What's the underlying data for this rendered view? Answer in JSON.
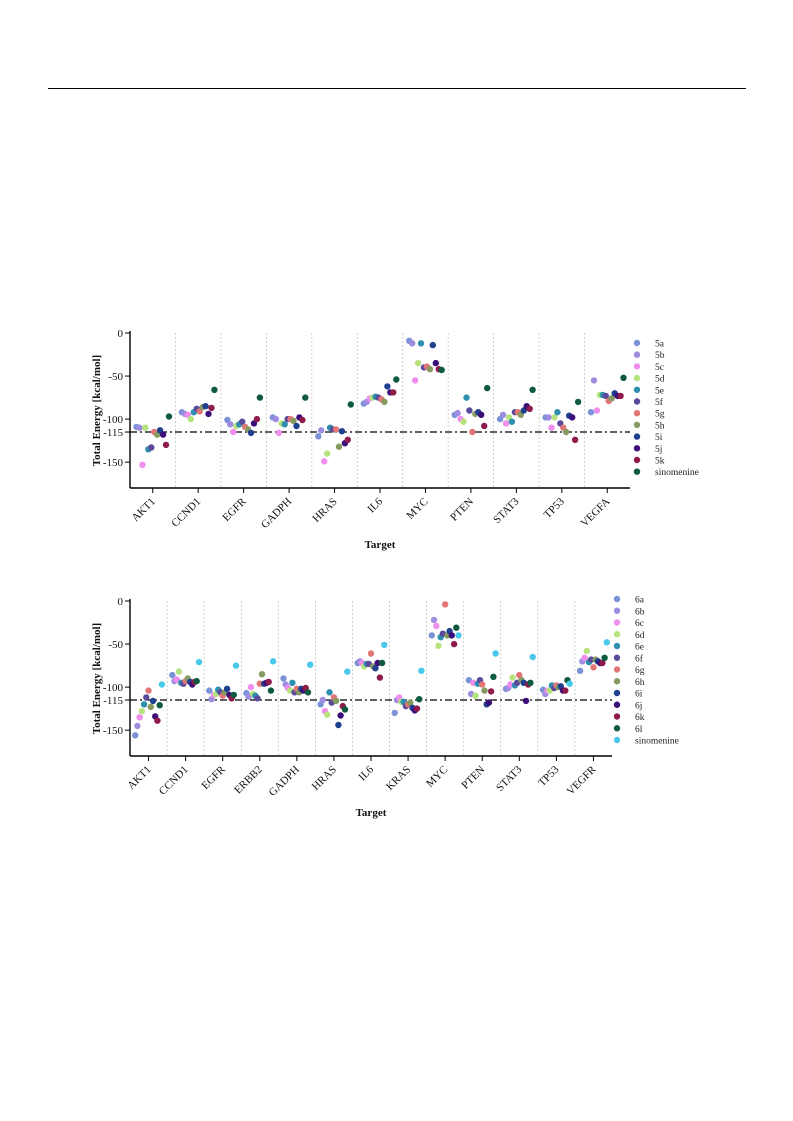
{
  "chart_data": [
    {
      "type": "scatter",
      "xlabel": "Target",
      "ylabel": "Total Energy [kcal/mol]",
      "ylim": [
        -180,
        0
      ],
      "yticks": [
        0,
        -50,
        -100,
        -115,
        -150
      ],
      "reference_line": -115,
      "categories": [
        "AKT1",
        "CCND1",
        "EGFR",
        "GADPH",
        "HRAS",
        "IL6",
        "MYC",
        "PTEN",
        "STAT3",
        "TP53",
        "VEGFA"
      ],
      "series": [
        {
          "name": "5a",
          "color": "#7b93d6",
          "values": [
            -109,
            -92,
            -101,
            -98,
            -120,
            -82,
            -9,
            -95,
            -100,
            -98,
            -92
          ]
        },
        {
          "name": "5b",
          "color": "#a08ce0",
          "values": [
            -110,
            -94,
            -106,
            -100,
            -113,
            -80,
            -12,
            -93,
            -95,
            -98,
            -55
          ]
        },
        {
          "name": "5c",
          "color": "#f08ef0",
          "values": [
            -153,
            -95,
            -115,
            -116,
            -149,
            -76,
            -55,
            -100,
            -105,
            -110,
            -90
          ]
        },
        {
          "name": "5d",
          "color": "#b7e37e",
          "values": [
            -110,
            -100,
            -108,
            -105,
            -140,
            -75,
            -35,
            -103,
            -98,
            -98,
            -72
          ]
        },
        {
          "name": "5e",
          "color": "#2f8faf",
          "values": [
            -135,
            -92,
            -106,
            -106,
            -110,
            -74,
            -12,
            -75,
            -103,
            -92,
            -72
          ]
        },
        {
          "name": "5f",
          "color": "#5b4a9b",
          "values": [
            -133,
            -88,
            -103,
            -100,
            -112,
            -75,
            -40,
            -90,
            -92,
            -105,
            -73
          ]
        },
        {
          "name": "5g",
          "color": "#e27575",
          "values": [
            -115,
            -91,
            -109,
            -100,
            -112,
            -77,
            -39,
            -115,
            -92,
            -110,
            -79
          ]
        },
        {
          "name": "5h",
          "color": "#869a62",
          "values": [
            -118,
            -86,
            -112,
            -102,
            -132,
            -80,
            -42,
            -94,
            -95,
            -115,
            -76
          ]
        },
        {
          "name": "5i",
          "color": "#1f3f8f",
          "values": [
            -113,
            -85,
            -116,
            -108,
            -114,
            -62,
            -14,
            -92,
            -90,
            -96,
            -70
          ]
        },
        {
          "name": "5j",
          "color": "#3b0e7a",
          "values": [
            -118,
            -94,
            -105,
            -98,
            -128,
            -69,
            -35,
            -95,
            -85,
            -98,
            -73
          ]
        },
        {
          "name": "5k",
          "color": "#8e1b4b",
          "values": [
            -130,
            -87,
            -100,
            -101,
            -124,
            -69,
            -42,
            -108,
            -88,
            -124,
            -73
          ]
        },
        {
          "name": "sinomenine",
          "color": "#0e5a3d",
          "values": [
            -97,
            -66,
            -75,
            -75,
            -83,
            -54,
            -43,
            -64,
            -66,
            -80,
            -52
          ]
        }
      ]
    },
    {
      "type": "scatter",
      "xlabel": "Target",
      "ylabel": "Total Energy [kcal/mol]",
      "ylim": [
        -180,
        0
      ],
      "yticks": [
        0,
        -50,
        -100,
        -115,
        -150
      ],
      "reference_line": -115,
      "categories": [
        "AKT1",
        "CCND1",
        "EGFR",
        "ERBB2",
        "GADPH",
        "HRAS",
        "IL6",
        "KRAS",
        "MYC",
        "PTEN",
        "STAT3",
        "TP53",
        "VEGFR"
      ],
      "series": [
        {
          "name": "6a",
          "color": "#7b93d6",
          "values": [
            -156,
            -86,
            -104,
            -107,
            -90,
            -120,
            -72,
            -130,
            -40,
            -92,
            -102,
            -103,
            -81
          ]
        },
        {
          "name": "6b",
          "color": "#a08ce0",
          "values": [
            -145,
            -93,
            -114,
            -111,
            -97,
            -115,
            -70,
            -115,
            -22,
            -108,
            -101,
            -108,
            -70
          ]
        },
        {
          "name": "6c",
          "color": "#f08ef0",
          "values": [
            -135,
            -91,
            -109,
            -100,
            -101,
            -128,
            -72,
            -112,
            -29,
            -95,
            -97,
            -104,
            -66
          ]
        },
        {
          "name": "6d",
          "color": "#b7e37e",
          "values": [
            -128,
            -82,
            -108,
            -108,
            -104,
            -132,
            -76,
            -117,
            -52,
            -110,
            -89,
            -104,
            -58
          ]
        },
        {
          "name": "6e",
          "color": "#2f8faf",
          "values": [
            -120,
            -95,
            -103,
            -110,
            -95,
            -106,
            -73,
            -117,
            -42,
            -96,
            -98,
            -98,
            -71
          ]
        },
        {
          "name": "6f",
          "color": "#5b4a9b",
          "values": [
            -112,
            -96,
            -106,
            -113,
            -106,
            -118,
            -73,
            -122,
            -38,
            -92,
            -95,
            -101,
            -68
          ]
        },
        {
          "name": "6g",
          "color": "#e27575",
          "values": [
            -104,
            -93,
            -110,
            -96,
            -102,
            -112,
            -61,
            -120,
            -4,
            -97,
            -86,
            -98,
            -77
          ]
        },
        {
          "name": "6h",
          "color": "#869a62",
          "values": [
            -123,
            -90,
            -106,
            -85,
            -106,
            -116,
            -76,
            -118,
            -40,
            -104,
            -92,
            -100,
            -68
          ]
        },
        {
          "name": "6i",
          "color": "#1f3f8f",
          "values": [
            -116,
            -94,
            -102,
            -96,
            -102,
            -144,
            -78,
            -124,
            -35,
            -120,
            -95,
            -99,
            -70
          ]
        },
        {
          "name": "6j",
          "color": "#3b0e7a",
          "values": [
            -134,
            -97,
            -109,
            -95,
            -104,
            -133,
            -72,
            -127,
            -40,
            -118,
            -116,
            -104,
            -72
          ]
        },
        {
          "name": "6k",
          "color": "#8e1b4b",
          "values": [
            -139,
            -94,
            -113,
            -94,
            -101,
            -122,
            -89,
            -125,
            -50,
            -105,
            -97,
            -104,
            -72
          ]
        },
        {
          "name": "6l",
          "color": "#0e5a3d",
          "values": [
            -121,
            -93,
            -109,
            -104,
            -106,
            -126,
            -72,
            -114,
            -31,
            -88,
            -95,
            -92,
            -66
          ]
        },
        {
          "name": "sinomenine",
          "color": "#49c8ec",
          "values": [
            -97,
            -71,
            -75,
            -70,
            -74,
            -82,
            -51,
            -81,
            -40,
            -61,
            -65,
            -96,
            -48
          ]
        }
      ]
    }
  ]
}
